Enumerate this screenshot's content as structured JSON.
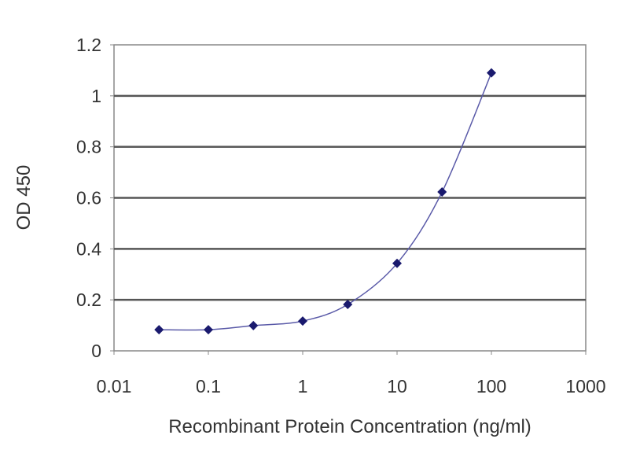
{
  "chart_data": {
    "type": "line",
    "title": "",
    "xlabel": "Recombinant Protein Concentration (ng/ml)",
    "ylabel": "OD 450",
    "x_scale": "log",
    "xlim": [
      0.01,
      1000
    ],
    "ylim": [
      0,
      1.2
    ],
    "x_ticks": [
      "0.01",
      "0.1",
      "1",
      "10",
      "100",
      "1000"
    ],
    "y_ticks": [
      "0",
      "0.2",
      "0.4",
      "0.6",
      "0.8",
      "1",
      "1.2"
    ],
    "grid": "horizontal",
    "legend": "none",
    "series": [
      {
        "color": "#1a1a6e",
        "line_color": "#5a5aa8",
        "x": [
          0.03,
          0.1,
          0.3,
          1,
          3,
          10,
          30,
          100
        ],
        "y": [
          0.083,
          0.083,
          0.099,
          0.117,
          0.182,
          0.343,
          0.623,
          1.09
        ]
      }
    ]
  }
}
